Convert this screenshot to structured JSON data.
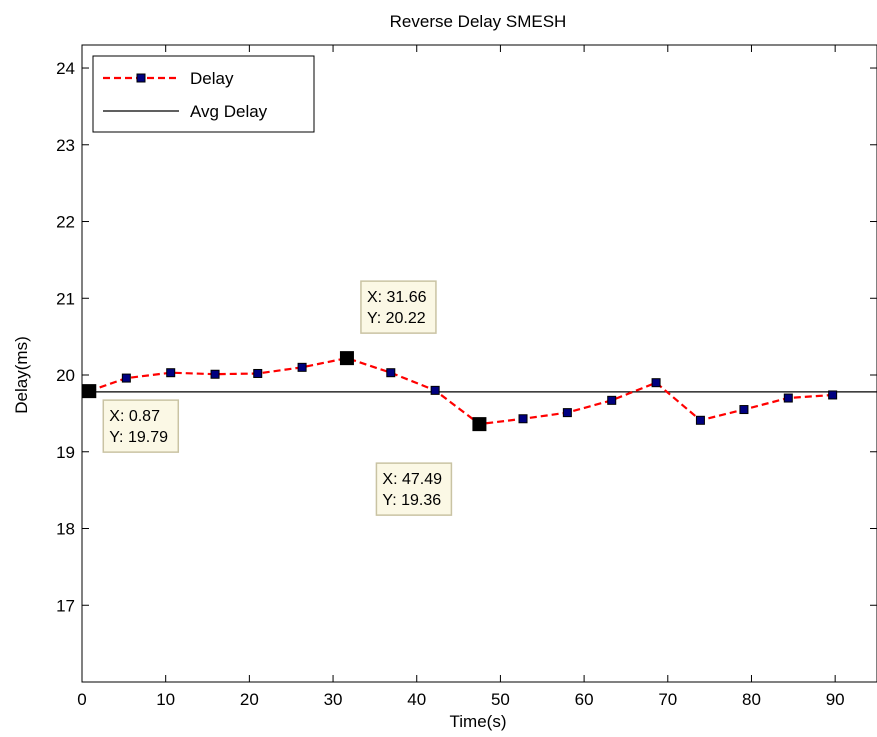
{
  "chart_data": {
    "type": "line",
    "title": "Reverse Delay SMESH",
    "xlabel": "Time(s)",
    "ylabel": "Delay(ms)",
    "xlim": [
      0,
      95
    ],
    "ylim": [
      16,
      24.3
    ],
    "xticks": [
      "0",
      "10",
      "20",
      "30",
      "40",
      "50",
      "60",
      "70",
      "80",
      "90"
    ],
    "yticks": [
      "17",
      "18",
      "19",
      "20",
      "21",
      "22",
      "23",
      "24"
    ],
    "grid": false,
    "legend_position": "top-left",
    "series": [
      {
        "name": "Delay",
        "style": "dashed-square-marker",
        "color": "#ff0000",
        "marker_color": "#000080",
        "x": [
          0.87,
          5.3,
          10.6,
          15.9,
          21.0,
          26.3,
          31.66,
          36.9,
          42.2,
          47.49,
          52.7,
          58.0,
          63.3,
          68.6,
          73.9,
          79.1,
          84.4,
          89.7
        ],
        "y": [
          19.79,
          19.96,
          20.03,
          20.01,
          20.02,
          20.1,
          20.22,
          20.03,
          19.8,
          19.36,
          19.43,
          19.51,
          19.67,
          19.9,
          19.41,
          19.55,
          19.7,
          19.74
        ]
      },
      {
        "name": "Avg Delay",
        "style": "solid",
        "color": "#000000",
        "y_const": 19.78
      }
    ],
    "datatips": [
      {
        "x": 0.87,
        "y": 19.79,
        "x_label": "X: 0.87",
        "y_label": "Y: 19.79"
      },
      {
        "x": 31.66,
        "y": 20.22,
        "x_label": "X: 31.66",
        "y_label": "Y: 20.22"
      },
      {
        "x": 47.49,
        "y": 19.36,
        "x_label": "X: 47.49",
        "y_label": "Y: 19.36"
      }
    ]
  }
}
